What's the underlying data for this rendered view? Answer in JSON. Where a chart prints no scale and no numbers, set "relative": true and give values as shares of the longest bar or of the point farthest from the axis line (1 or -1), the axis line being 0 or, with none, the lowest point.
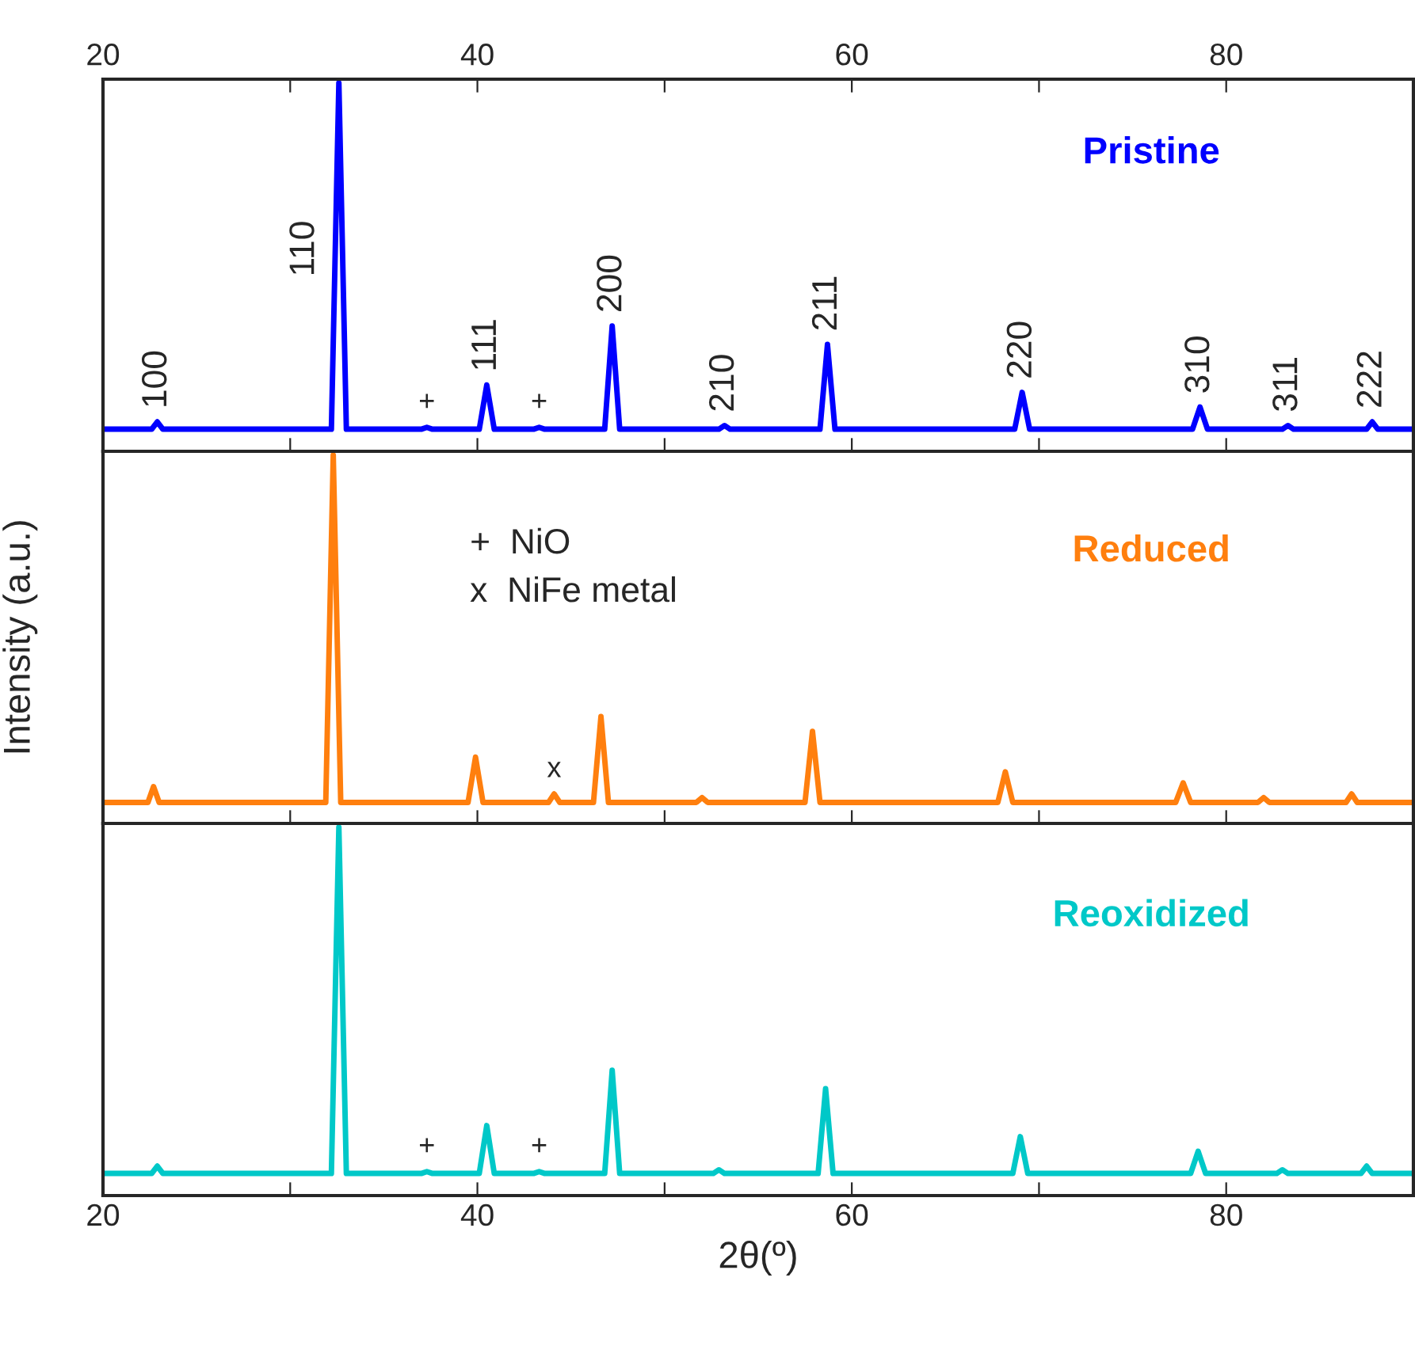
{
  "chart_data": [
    {
      "type": "line",
      "relative": true,
      "xlim": [
        20,
        90
      ],
      "xticks": [
        20,
        {
          "value": 30,
          "label": null
        },
        40,
        {
          "value": 50,
          "label": null
        },
        60,
        {
          "value": 70,
          "label": null
        },
        80
      ],
      "tick_labels": "x",
      "grid": false,
      "series": [
        {
          "name": "Pristine",
          "color": "#0000ff",
          "x": [
            20,
            22.6,
            22.9,
            23.2,
            32.2,
            32.6,
            33.0,
            37.0,
            37.3,
            37.6,
            40.1,
            40.5,
            40.9,
            43.0,
            43.3,
            43.6,
            46.8,
            47.2,
            47.6,
            52.9,
            53.2,
            53.5,
            58.3,
            58.7,
            59.1,
            68.7,
            69.1,
            69.5,
            78.2,
            78.6,
            79.0,
            83.0,
            83.3,
            83.6,
            87.5,
            87.8,
            88.1,
            90
          ],
          "values": [
            0.06,
            0.06,
            0.08,
            0.06,
            0.06,
            1.0,
            0.06,
            0.06,
            0.065,
            0.06,
            0.06,
            0.18,
            0.06,
            0.06,
            0.065,
            0.06,
            0.06,
            0.34,
            0.06,
            0.06,
            0.07,
            0.06,
            0.06,
            0.29,
            0.06,
            0.06,
            0.16,
            0.06,
            0.06,
            0.12,
            0.06,
            0.06,
            0.07,
            0.06,
            0.06,
            0.08,
            0.06,
            0.06
          ]
        }
      ],
      "annotations": [
        {
          "text": "100",
          "x": 22.9,
          "y": 0.08
        },
        {
          "text": "110",
          "x": 32.6,
          "y": 0.55
        },
        {
          "text": "111",
          "x": 40.5,
          "y": 0.18
        },
        {
          "text": "200",
          "x": 47.2,
          "y": 0.34
        },
        {
          "text": "210",
          "x": 53.2,
          "y": 0.07
        },
        {
          "text": "211",
          "x": 58.7,
          "y": 0.29
        },
        {
          "text": "220",
          "x": 69.1,
          "y": 0.16
        },
        {
          "text": "310",
          "x": 78.6,
          "y": 0.12
        },
        {
          "text": "311",
          "x": 83.3,
          "y": 0.07
        },
        {
          "text": "222",
          "x": 87.8,
          "y": 0.08
        },
        {
          "text": "+",
          "x": 37.3,
          "y": 0.065
        },
        {
          "text": "+",
          "x": 43.3,
          "y": 0.065
        }
      ]
    },
    {
      "type": "line",
      "relative": true,
      "ylabel": "Intensity (a.u.)",
      "xlim": [
        20,
        90
      ],
      "xticks": [
        20,
        30,
        40,
        50,
        60,
        70,
        80
      ],
      "tick_labels": false,
      "grid": false,
      "series": [
        {
          "name": "Reduced",
          "color": "#ff7f0e",
          "x": [
            20,
            22.4,
            22.7,
            23.0,
            31.9,
            32.3,
            32.7,
            39.5,
            39.9,
            40.3,
            43.8,
            44.1,
            44.4,
            46.2,
            46.6,
            47.0,
            51.7,
            52.0,
            52.3,
            57.5,
            57.9,
            58.3,
            67.8,
            68.2,
            68.6,
            77.3,
            77.7,
            78.1,
            81.7,
            82.0,
            82.3,
            86.4,
            86.7,
            87.0,
            90
          ],
          "values": [
            0.057,
            0.057,
            0.1,
            0.057,
            0.057,
            1.0,
            0.057,
            0.057,
            0.18,
            0.057,
            0.057,
            0.08,
            0.057,
            0.057,
            0.29,
            0.057,
            0.057,
            0.07,
            0.057,
            0.057,
            0.25,
            0.057,
            0.057,
            0.14,
            0.057,
            0.057,
            0.11,
            0.057,
            0.057,
            0.07,
            0.057,
            0.057,
            0.08,
            0.057,
            0.057
          ]
        }
      ],
      "annotations": [
        "+  NiO",
        "x  NiFe metal",
        {
          "text": "x",
          "x": 44.1,
          "y": 0.08
        }
      ]
    },
    {
      "type": "line",
      "relative": true,
      "xlabel": "2θ(º)",
      "xlim": [
        20,
        90
      ],
      "xticks": [
        20,
        {
          "value": 30,
          "label": null
        },
        40,
        {
          "value": 50,
          "label": null
        },
        60,
        {
          "value": 70,
          "label": null
        },
        80
      ],
      "tick_labels": "x",
      "grid": false,
      "series": [
        {
          "name": "Reoxidized",
          "color": "#00c8c8",
          "x": [
            20,
            22.6,
            22.9,
            23.2,
            32.2,
            32.6,
            33.0,
            37.0,
            37.3,
            37.6,
            40.1,
            40.5,
            40.9,
            43.0,
            43.3,
            43.6,
            46.8,
            47.2,
            47.6,
            52.6,
            52.9,
            53.2,
            58.2,
            58.6,
            59.0,
            68.6,
            69.0,
            69.4,
            78.1,
            78.5,
            78.9,
            82.7,
            83.0,
            83.3,
            87.2,
            87.5,
            87.8,
            90
          ],
          "values": [
            0.06,
            0.06,
            0.08,
            0.06,
            0.06,
            1.0,
            0.06,
            0.06,
            0.065,
            0.06,
            0.06,
            0.19,
            0.06,
            0.06,
            0.065,
            0.06,
            0.06,
            0.34,
            0.06,
            0.06,
            0.07,
            0.06,
            0.06,
            0.29,
            0.06,
            0.06,
            0.16,
            0.06,
            0.06,
            0.12,
            0.06,
            0.06,
            0.07,
            0.06,
            0.06,
            0.08,
            0.06,
            0.06
          ]
        }
      ],
      "annotations": [
        {
          "text": "+",
          "x": 37.3,
          "y": 0.065
        },
        {
          "text": "+",
          "x": 43.3,
          "y": 0.065
        }
      ]
    }
  ]
}
